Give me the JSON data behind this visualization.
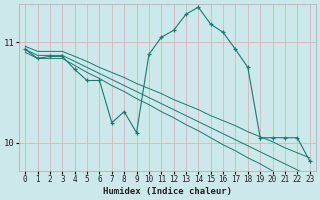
{
  "xlabel": "Humidex (Indice chaleur)",
  "background_color": "#cce8eb",
  "grid_color": "#e8c8c8",
  "line_color": "#1a7a6e",
  "xlim": [
    -0.5,
    23.5
  ],
  "ylim": [
    9.72,
    11.38
  ],
  "yticks": [
    10,
    11
  ],
  "xticks": [
    0,
    1,
    2,
    3,
    4,
    5,
    6,
    7,
    8,
    9,
    10,
    11,
    12,
    13,
    14,
    15,
    16,
    17,
    18,
    19,
    20,
    21,
    22,
    23
  ],
  "smooth1_y": [
    10.9,
    10.84,
    10.84,
    10.84,
    10.77,
    10.7,
    10.64,
    10.57,
    10.51,
    10.44,
    10.38,
    10.31,
    10.25,
    10.18,
    10.12,
    10.05,
    9.98,
    9.92,
    9.85,
    9.79,
    9.72,
    9.66,
    9.59,
    9.53
  ],
  "smooth2_y": [
    10.93,
    10.87,
    10.87,
    10.87,
    10.81,
    10.75,
    10.69,
    10.63,
    10.57,
    10.51,
    10.45,
    10.39,
    10.33,
    10.27,
    10.21,
    10.15,
    10.09,
    10.03,
    9.97,
    9.91,
    9.85,
    9.79,
    9.73,
    9.67
  ],
  "smooth3_y": [
    10.96,
    10.91,
    10.91,
    10.91,
    10.86,
    10.81,
    10.75,
    10.7,
    10.65,
    10.59,
    10.54,
    10.49,
    10.43,
    10.38,
    10.33,
    10.27,
    10.22,
    10.17,
    10.11,
    10.06,
    10.01,
    9.95,
    9.9,
    9.85
  ],
  "main_x": [
    0,
    1,
    2,
    3,
    4,
    5,
    6,
    7,
    8,
    9,
    10,
    11,
    12,
    13,
    14,
    15,
    16,
    17,
    18,
    19,
    20,
    21,
    22,
    23
  ],
  "main_y": [
    10.93,
    10.84,
    10.86,
    10.86,
    10.73,
    10.62,
    10.62,
    10.2,
    10.31,
    10.1,
    10.88,
    11.05,
    11.12,
    11.28,
    11.35,
    11.18,
    11.1,
    10.93,
    10.75,
    10.05,
    10.05,
    10.05,
    10.05,
    9.82
  ]
}
